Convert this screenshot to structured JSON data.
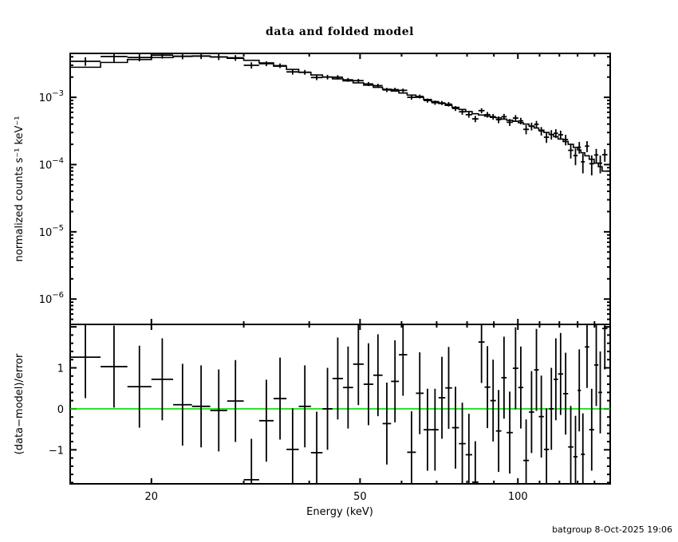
{
  "title": "data and folded model",
  "footer": {
    "text": "batgroup  8-Oct-2025 19:06"
  },
  "chart_data": {
    "type": "scatter",
    "title": "data and folded model",
    "description": "X-ray spectrum: data with error bars and folded model histogram (top, log-log), and (data-model)/error residuals (bottom, semi-log).",
    "colors": {
      "foreground": "#000000",
      "model_line": "#000000",
      "data_points": "#000000",
      "zero_line": "#00dd00",
      "background": "#ffffff"
    },
    "x_axis": {
      "label": "Energy (keV)",
      "scale": "log",
      "range": [
        14.0,
        150.0
      ],
      "major_ticks": [
        {
          "value": 20,
          "label": "20"
        },
        {
          "value": 50,
          "label": "50"
        },
        {
          "value": 100,
          "label": "100"
        }
      ],
      "minor_ticks": [
        30,
        40,
        60,
        70,
        80,
        90,
        110,
        120,
        130,
        140
      ]
    },
    "top_panel": {
      "ylabel": "normalized counts s⁻¹ keV⁻¹",
      "yscale": "log",
      "yrange": [
        4.2e-07,
        0.0045
      ],
      "ytick_labels": [
        {
          "value": 0.001,
          "base": "10",
          "exp": "−3",
          "label": "10⁻³"
        },
        {
          "value": 0.0001,
          "base": "10",
          "exp": "−4",
          "label": "10⁻⁴"
        },
        {
          "value": 1e-05,
          "base": "10",
          "exp": "−5",
          "label": "10⁻⁵"
        },
        {
          "value": 1e-06,
          "base": "10",
          "exp": "−6",
          "label": "10⁻⁶"
        }
      ],
      "bin_edges_kev": [
        14.0,
        16.0,
        18.0,
        20.0,
        22.0,
        23.9,
        25.9,
        27.9,
        30.0,
        32.1,
        34.2,
        36.2,
        38.2,
        40.3,
        42.4,
        44.3,
        46.4,
        48.5,
        50.8,
        53.0,
        55.2,
        57.3,
        59.3,
        61.5,
        63.9,
        66.1,
        68.4,
        70.6,
        72.7,
        74.9,
        77.2,
        79.5,
        81.8,
        84.1,
        86.4,
        88.6,
        90.8,
        93.0,
        95.2,
        97.8,
        100.2,
        102.4,
        105.0,
        107.4,
        109.6,
        112.1,
        114.7,
        117.0,
        119.3,
        122.0,
        124.7,
        127.6,
        130.0,
        131.9,
        134.2,
        136.8,
        139.8,
        142.4,
        144.8,
        148.2
      ],
      "energy_kev": [
        15.0,
        17.0,
        19.0,
        21.0,
        22.9,
        24.9,
        26.9,
        28.9,
        31.0,
        33.1,
        35.2,
        37.2,
        39.2,
        41.3,
        43.3,
        45.3,
        47.4,
        49.6,
        51.9,
        54.1,
        56.2,
        58.3,
        60.4,
        62.7,
        65.0,
        67.2,
        69.5,
        71.6,
        73.8,
        76.0,
        78.3,
        80.6,
        82.9,
        85.2,
        87.5,
        89.7,
        91.9,
        94.1,
        96.5,
        99.0,
        101.3,
        103.7,
        106.2,
        108.5,
        110.8,
        113.4,
        115.8,
        118.1,
        120.6,
        123.3,
        126.1,
        128.8,
        130.9,
        133.0,
        135.5,
        138.3,
        141.1,
        143.6,
        146.5
      ],
      "model_counts": [
        0.0028,
        0.0033,
        0.00365,
        0.0039,
        0.00405,
        0.0041,
        0.004,
        0.0038,
        0.00355,
        0.00325,
        0.0029,
        0.0026,
        0.00235,
        0.00215,
        0.002,
        0.00188,
        0.00176,
        0.00164,
        0.00152,
        0.00141,
        0.00132,
        0.00124,
        0.00116,
        0.00108,
        0.001,
        0.00093,
        0.000865,
        0.00081,
        0.00076,
        0.00071,
        0.00066,
        0.000615,
        0.00057,
        0.000545,
        0.000525,
        0.000505,
        0.000495,
        0.000475,
        0.000455,
        0.00044,
        0.00042,
        0.0004,
        0.000375,
        0.00035,
        0.000325,
        0.0003,
        0.00028,
        0.00026,
        0.00024,
        0.00022,
        0.0002,
        0.00018,
        0.000165,
        0.00015,
        0.000135,
        0.00012,
        0.000105,
        9.3e-05,
        8e-05
      ],
      "data_counts": [
        0.00344,
        0.00405,
        0.00391,
        0.00424,
        0.00409,
        0.00412,
        0.00398,
        0.00387,
        0.003,
        0.00317,
        0.00296,
        0.00239,
        0.00236,
        0.00197,
        0.002,
        0.00199,
        0.00182,
        0.00177,
        0.00158,
        0.00149,
        0.00129,
        0.0013,
        0.00127,
        0.001,
        0.00103,
        0.000897,
        0.000834,
        0.000825,
        0.000791,
        0.000684,
        0.00061,
        0.000553,
        0.000478,
        0.000634,
        0.000553,
        0.000515,
        0.000466,
        0.000515,
        0.000426,
        0.000492,
        0.000446,
        0.000334,
        0.000371,
        0.000397,
        0.000316,
        0.000255,
        0.00028,
        0.000292,
        0.000277,
        0.000235,
        0.000163,
        0.000136,
        0.000181,
        0.00011,
        0.000188,
        0.000103,
        0.000139,
        0.000105,
        0.00014
      ],
      "data_counts_err": [
        0.0005,
        0.00073,
        0.00048,
        0.00047,
        0.00041,
        0.00041,
        0.0004,
        0.00038,
        0.00032,
        0.00026,
        0.00023,
        0.00021,
        0.00019,
        0.00017,
        0.00016,
        0.00015,
        0.00012,
        0.00011,
        0.00011,
        0.0001,
        9.2e-05,
        8.7e-05,
        8.1e-05,
        7.6e-05,
        7e-05,
        6.5e-05,
        6.1e-05,
        5.7e-05,
        6.1e-05,
        5.7e-05,
        5.9e-05,
        5.5e-05,
        5.1e-05,
        5.5e-05,
        5.3e-05,
        5.1e-05,
        5.4e-05,
        5.2e-05,
        5e-05,
        5.3e-05,
        5e-05,
        5.2e-05,
        4.9e-05,
        4.9e-05,
        4.6e-05,
        4.5e-05,
        4.5e-05,
        4.4e-05,
        4.3e-05,
        4.2e-05,
        4e-05,
        3.8e-05,
        3.6e-05,
        3.6e-05,
        3.5e-05,
        3.4e-05,
        3.2e-05,
        3.1e-05,
        3e-05
      ]
    },
    "bottom_panel": {
      "ylabel": "(data−model)/error",
      "xlabel": "Energy (keV)",
      "yscale": "linear",
      "yrange": [
        -1.83,
        2.06
      ],
      "ytick_labels": [
        {
          "value": 1,
          "label": "1"
        },
        {
          "value": 0,
          "label": "0"
        },
        {
          "value": -1,
          "label": "−1"
        }
      ],
      "major_tick_values": [
        -1,
        0,
        1,
        2
      ],
      "minor_tick_step": 0.2,
      "zero_line": {
        "value": 0,
        "color": "#00dd00"
      },
      "residuals": [
        1.26,
        1.03,
        0.54,
        0.72,
        0.1,
        0.06,
        -0.04,
        0.19,
        -1.73,
        -0.29,
        0.25,
        -0.99,
        0.06,
        -1.07,
        0.0,
        0.74,
        0.52,
        1.09,
        0.6,
        0.82,
        -0.36,
        0.67,
        1.32,
        -1.06,
        0.38,
        -0.51,
        -0.51,
        0.27,
        0.51,
        -0.46,
        -0.85,
        -1.12,
        -1.79,
        1.63,
        0.53,
        0.2,
        -0.54,
        0.76,
        -0.58,
        0.99,
        0.52,
        -1.26,
        -0.08,
        0.95,
        -0.19,
        -0.99,
        0.0,
        0.72,
        0.85,
        0.37,
        -0.93,
        -1.17,
        0.45,
        -1.11,
        1.51,
        -0.51,
        1.07,
        0.4,
        1.96
      ],
      "residuals_err": 1.0
    }
  }
}
